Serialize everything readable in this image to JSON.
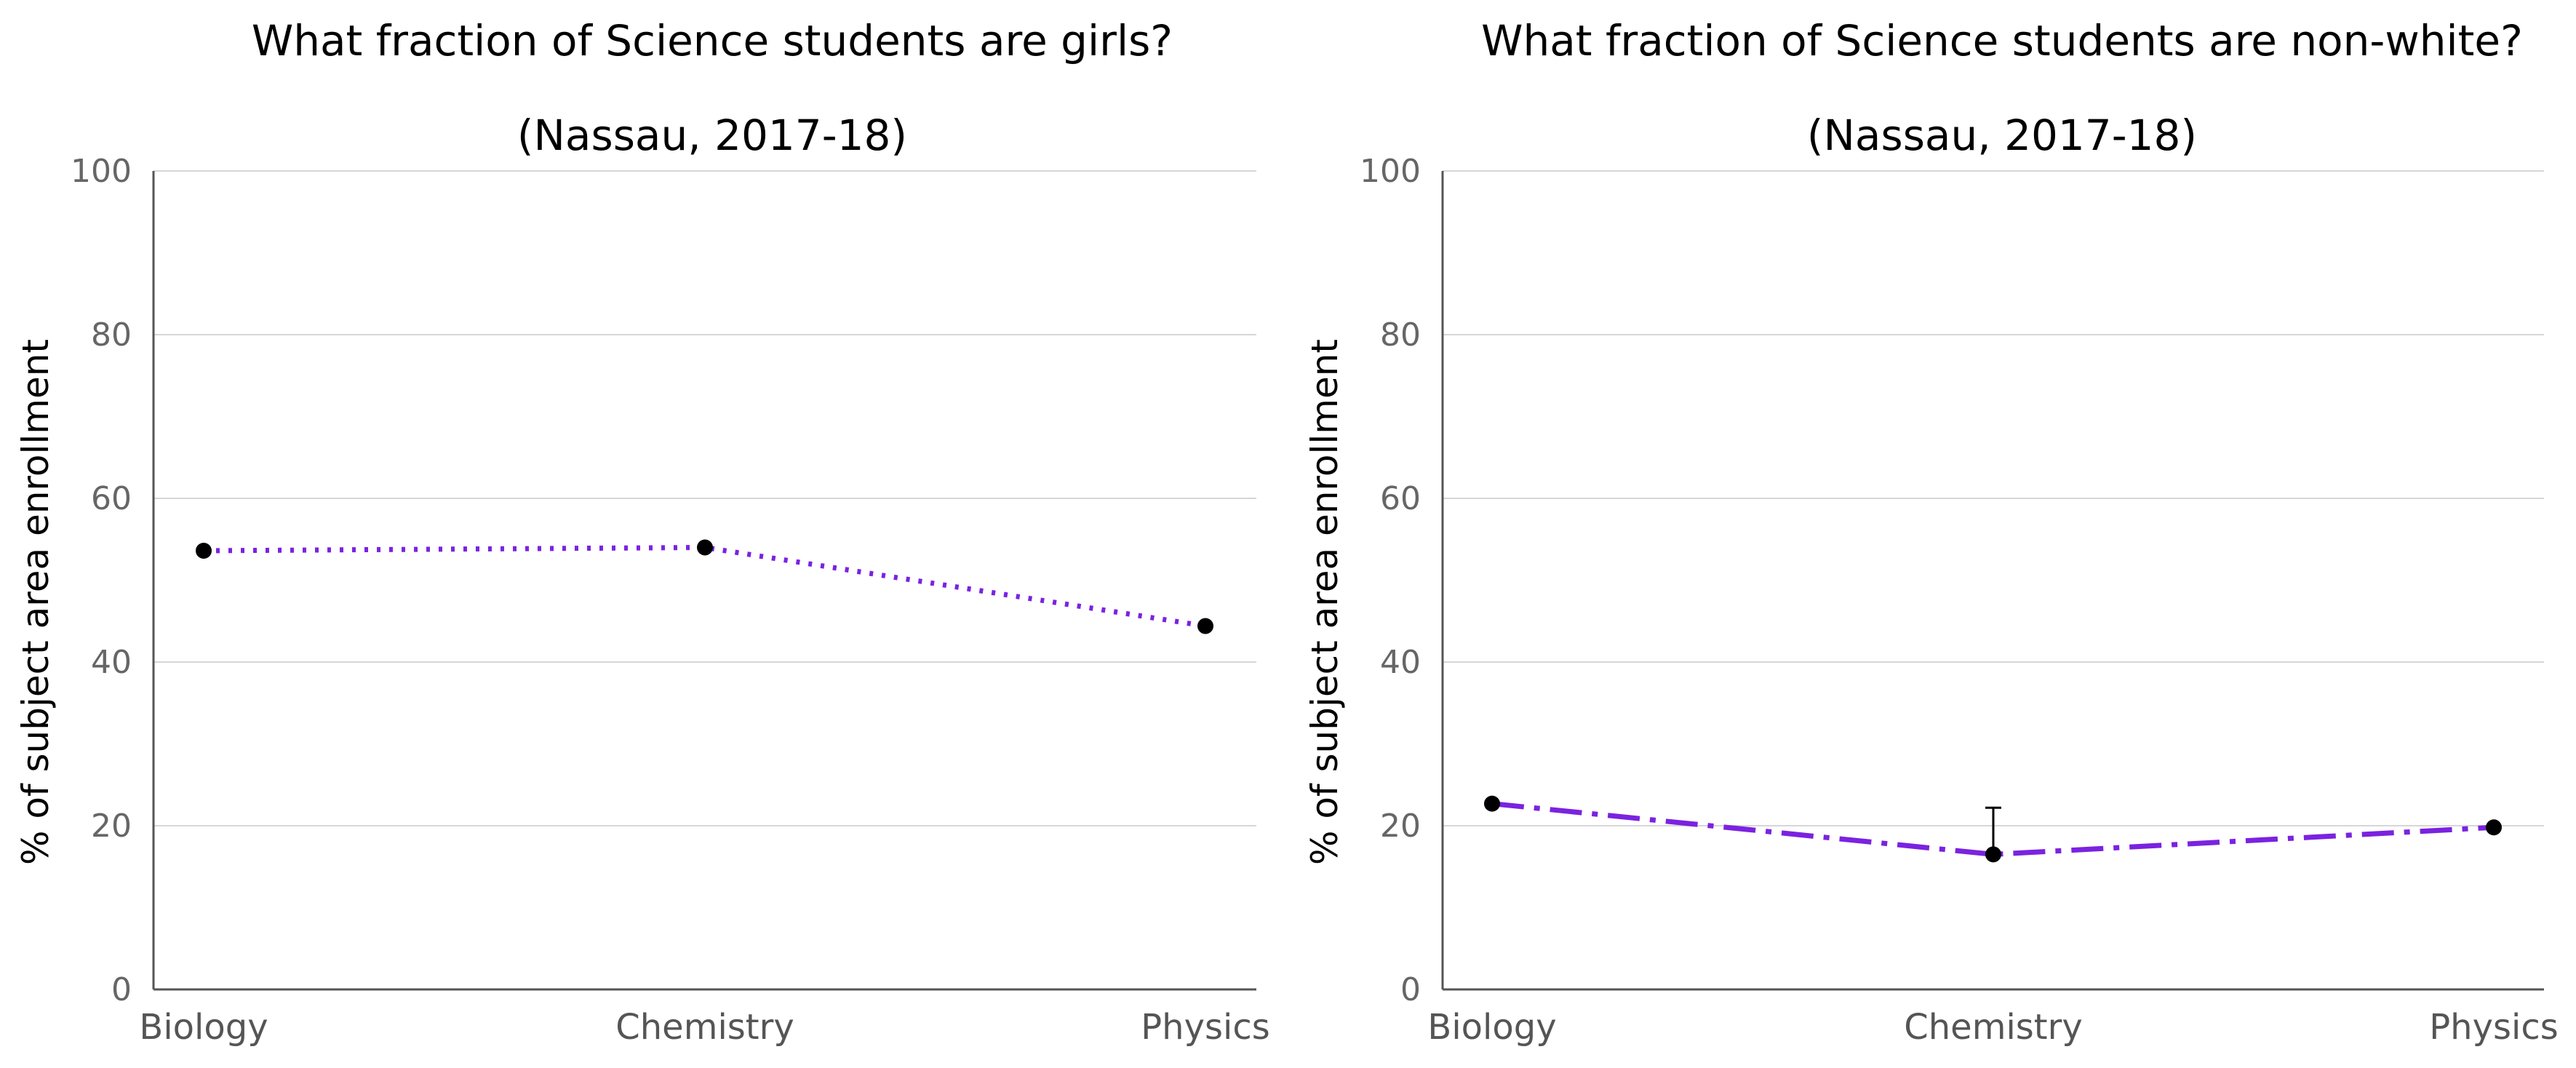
{
  "chart_data": [
    {
      "type": "line",
      "title": "What fraction of Science students are girls?",
      "subtitle": "(Nassau, 2017-18)",
      "ylabel": "% of subject area enrollment",
      "xlabel": "",
      "categories": [
        "Biology",
        "Chemistry",
        "Physics"
      ],
      "ylim": [
        0,
        100
      ],
      "yticks": [
        "0",
        "20",
        "40",
        "60",
        "80",
        "100"
      ],
      "grid": true,
      "line_style": "dotted",
      "line_color": "#7B22E0",
      "marker_color": "#000000",
      "series": [
        {
          "values": [
            53.6,
            54.0,
            44.4
          ]
        }
      ]
    },
    {
      "type": "line",
      "title": "What fraction of Science students are non-white?",
      "subtitle": "(Nassau, 2017-18)",
      "ylabel": "% of subject area enrollment",
      "xlabel": "",
      "categories": [
        "Biology",
        "Chemistry",
        "Physics"
      ],
      "ylim": [
        0,
        100
      ],
      "yticks": [
        "0",
        "20",
        "40",
        "60",
        "80",
        "100"
      ],
      "grid": true,
      "line_style": "dash-dot",
      "line_color": "#7B22E0",
      "marker_color": "#000000",
      "series": [
        {
          "values": [
            22.7,
            16.5,
            19.8
          ],
          "error_upper": [
            null,
            22.2,
            null
          ]
        }
      ]
    }
  ]
}
